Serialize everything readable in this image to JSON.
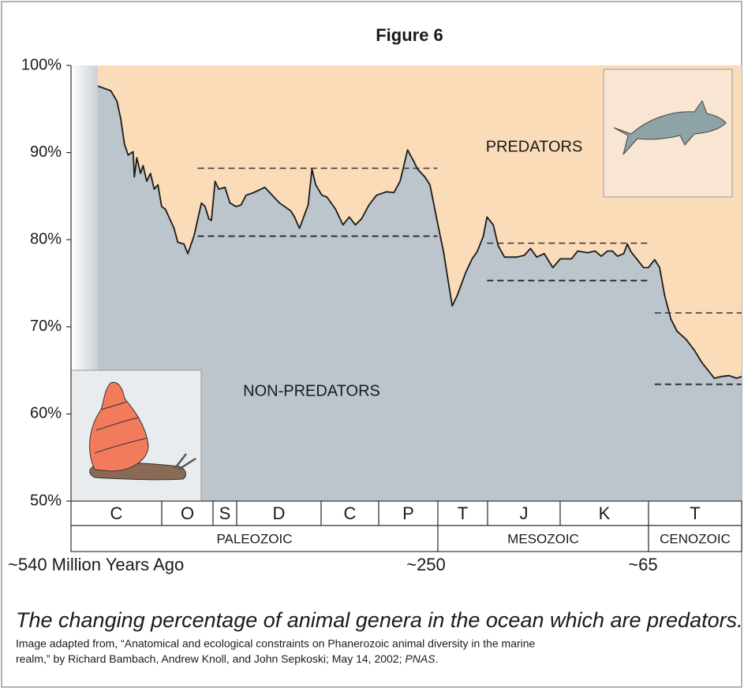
{
  "chart_data": {
    "type": "area",
    "title": "Figure 6",
    "x": [
      520,
      508,
      503,
      500,
      497,
      494,
      490,
      489,
      487,
      484,
      482,
      479,
      476,
      473,
      470,
      467,
      464,
      457,
      454,
      449,
      446,
      441,
      435,
      432,
      429,
      427,
      424,
      421,
      416,
      412,
      407,
      403,
      399,
      393,
      384,
      378,
      372,
      363,
      360,
      356,
      349,
      346,
      343,
      338,
      334,
      327,
      321,
      316,
      311,
      306,
      300,
      294,
      286,
      280,
      275,
      269,
      264,
      261,
      255,
      251,
      248,
      245,
      240,
      236,
      233,
      229,
      222,
      217,
      213,
      208,
      205,
      200,
      196,
      191,
      181,
      175,
      170,
      165,
      159,
      152,
      146,
      137,
      132,
      124,
      118,
      113,
      108,
      104,
      100,
      95,
      92,
      89,
      84,
      79,
      75,
      70,
      66,
      62,
      57,
      52,
      45,
      38,
      32,
      22,
      16,
      10,
      4,
      0
    ],
    "values": [
      97.7,
      97.1,
      95.9,
      93.9,
      91.0,
      89.7,
      90.1,
      87.2,
      89.4,
      87.6,
      88.5,
      86.7,
      87.6,
      85.8,
      86.3,
      83.8,
      83.5,
      81.3,
      79.7,
      79.5,
      78.4,
      80.4,
      84.2,
      83.8,
      82.4,
      82.2,
      86.7,
      85.8,
      86.0,
      84.2,
      83.8,
      84.0,
      85.1,
      85.4,
      86.0,
      85.1,
      84.2,
      83.3,
      82.6,
      81.3,
      84.0,
      88.1,
      86.3,
      85.1,
      84.9,
      83.5,
      81.7,
      82.6,
      81.7,
      82.4,
      84.0,
      85.1,
      85.5,
      85.4,
      86.7,
      90.3,
      89.0,
      88.1,
      87.2,
      86.3,
      84.2,
      82.0,
      78.6,
      75.0,
      72.4,
      73.6,
      76.3,
      77.8,
      78.6,
      80.4,
      82.6,
      81.7,
      79.3,
      78.0,
      78.0,
      78.2,
      79.0,
      78.0,
      78.4,
      76.8,
      77.8,
      77.8,
      78.7,
      78.5,
      78.7,
      78.1,
      78.7,
      78.7,
      78.1,
      78.4,
      79.5,
      78.6,
      77.7,
      76.8,
      76.8,
      77.7,
      76.8,
      73.6,
      70.9,
      69.5,
      68.6,
      67.3,
      65.9,
      64.1,
      64.3,
      64.4,
      64.1,
      64.3
    ],
    "color": "#1a1a1a",
    "fill_above": "#fbdcb9",
    "fill_below": "#bcc5cc",
    "region_labels": {
      "above": "PREDATORS",
      "below": "NON-PREDATORS"
    },
    "xlim": [
      540,
      0
    ],
    "ylim": [
      50,
      100
    ],
    "yticks": [
      {
        "value": 50,
        "label": "50%"
      },
      {
        "value": 60,
        "label": "60%"
      },
      {
        "value": 70,
        "label": "70%"
      },
      {
        "value": 80,
        "label": "80%"
      },
      {
        "value": 90,
        "label": "90%"
      },
      {
        "value": 100,
        "label": "100%"
      }
    ],
    "reference_lines": [
      {
        "x": [
          438,
          245
        ],
        "values": [
          88.2,
          80.4
        ]
      },
      {
        "x": [
          205,
          75
        ],
        "values": [
          79.6,
          75.3
        ]
      },
      {
        "x": [
          70,
          0
        ],
        "values": [
          71.6,
          63.4
        ]
      }
    ],
    "periods": [
      "C",
      "O",
      "S",
      "D",
      "C",
      "P",
      "T",
      "J",
      "K",
      "T"
    ],
    "eras": [
      "PALEOZOIC",
      "MESOZOIC",
      "CENOZOIC"
    ],
    "time_labels": [
      "~540 Million Years Ago",
      "~250",
      "~65"
    ]
  },
  "caption": "The changing percentage of animal genera in the ocean which are predators.",
  "source": {
    "lines": [
      "Image adapted from, “Anatomical and ecological constraints on Phanerozoic animal diversity in the marine",
      "realm,” by Richard Bambach, Andrew Knoll, and John Sepkoski; May 14, 2002; "
    ],
    "journal": "PNAS",
    "end": "."
  }
}
